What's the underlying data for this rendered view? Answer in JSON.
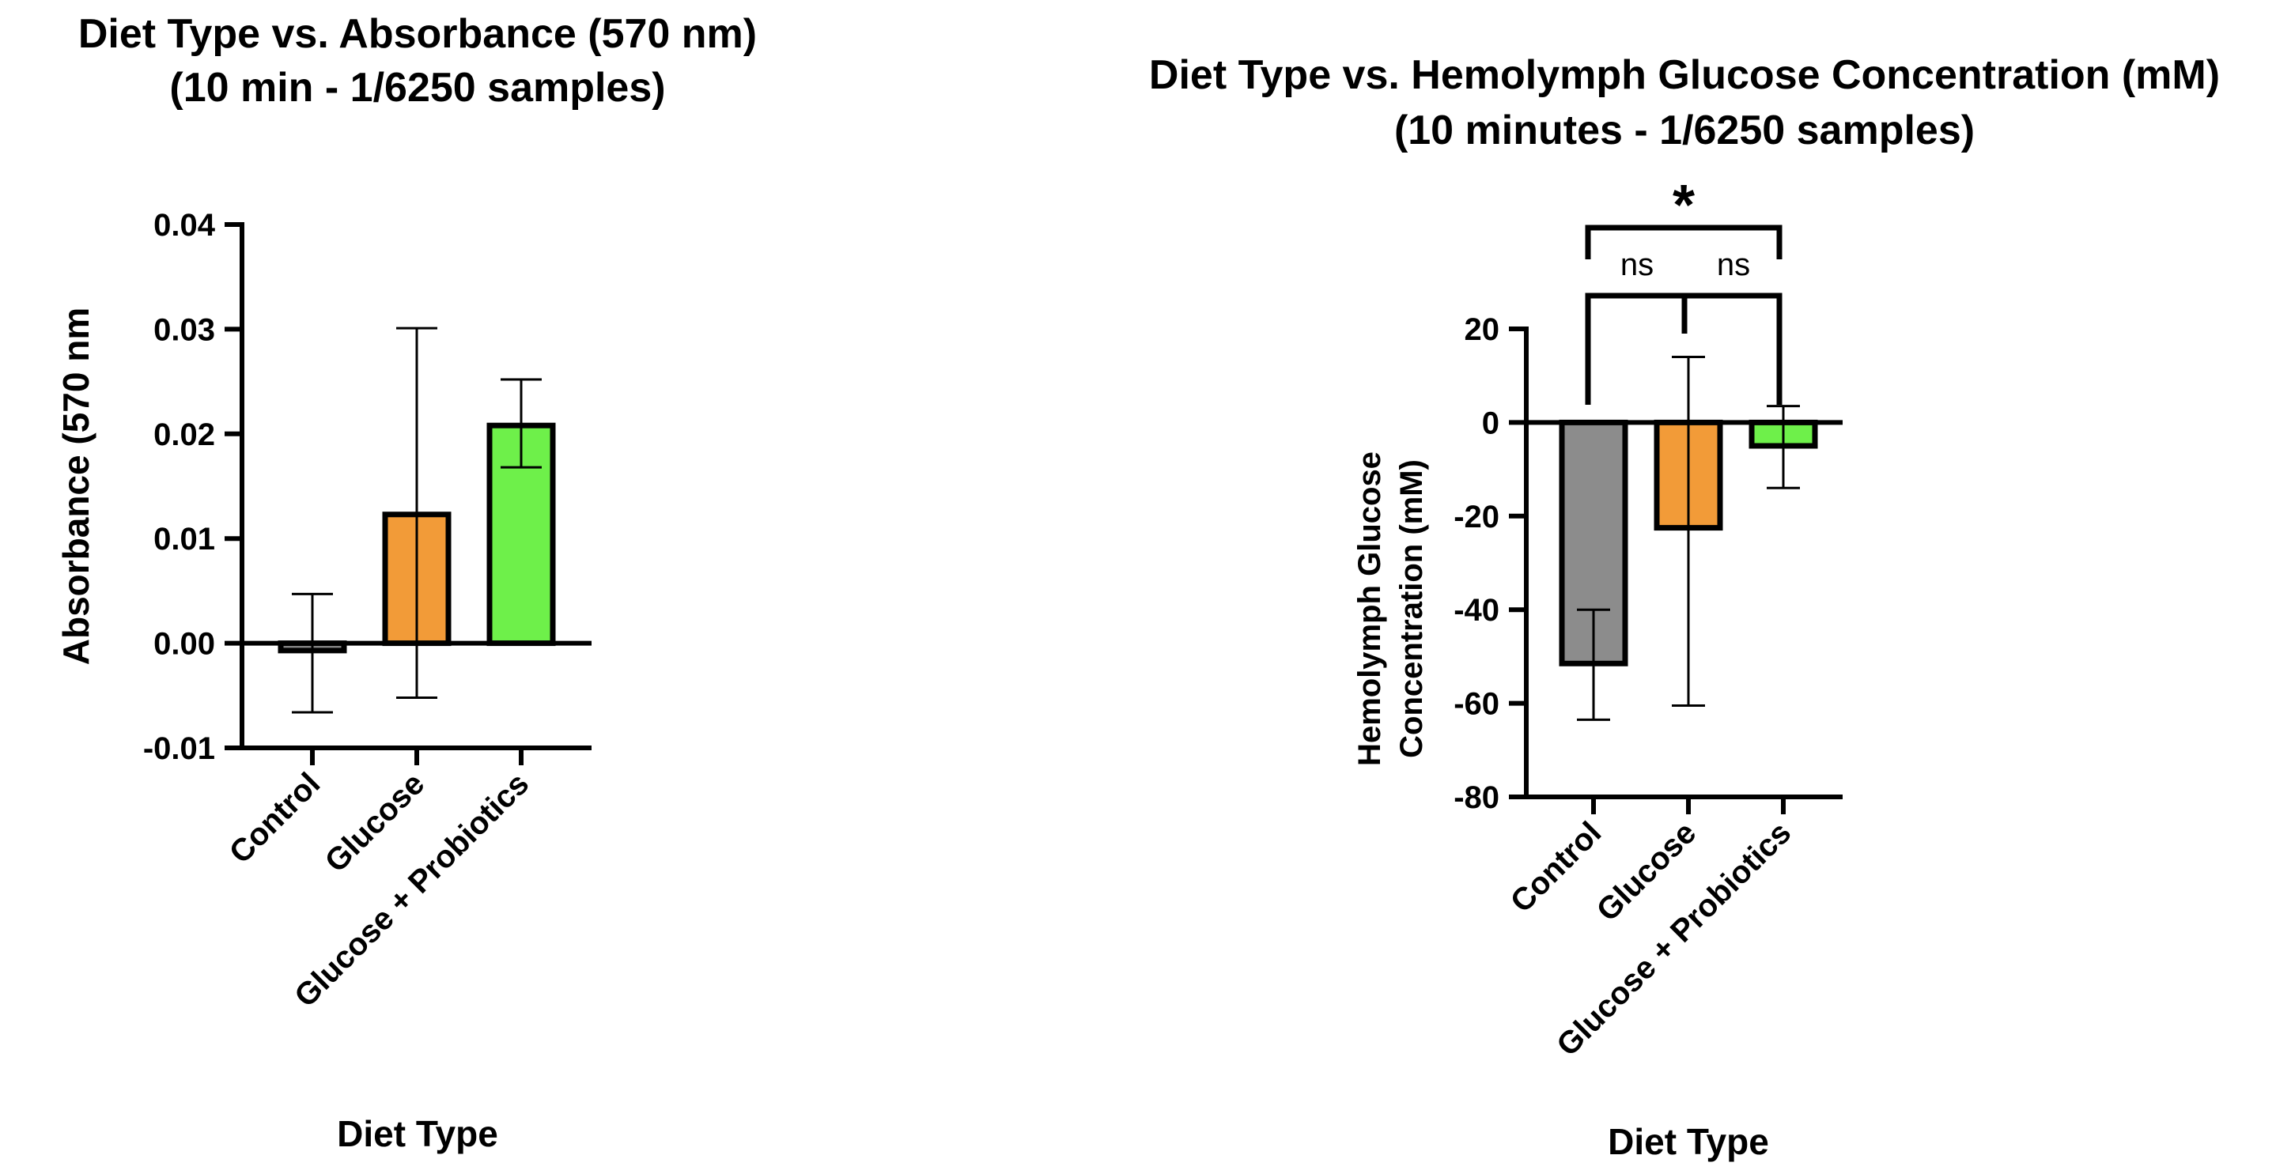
{
  "chart_data": [
    {
      "type": "bar",
      "title": "Diet Type vs. Absorbance (570 nm)",
      "subtitle": "(10 min - 1/6250 samples)",
      "xlabel": "Diet Type",
      "ylabel": "Absorbance (570 nm",
      "ylim": [
        -0.01,
        0.04
      ],
      "yticks": [
        -0.01,
        0.0,
        0.01,
        0.02,
        0.03,
        0.04
      ],
      "ytick_labels": [
        "-0.01",
        "0.00",
        "0.01",
        "0.02",
        "0.03",
        "0.04"
      ],
      "categories": [
        "Control",
        "Glucose",
        "Glucose + Probiotics"
      ],
      "values": [
        -0.0007,
        0.0123,
        0.0208
      ],
      "error_low": [
        -0.0066,
        -0.0052,
        0.0168
      ],
      "error_high": [
        0.0047,
        0.0301,
        0.0252
      ],
      "colors": [
        "#8c8c8c",
        "#f29b38",
        "#6ef04a"
      ]
    },
    {
      "type": "bar",
      "title": "Diet Type vs. Hemolymph Glucose Concentration (mM)",
      "subtitle": "(10 minutes - 1/6250 samples)",
      "xlabel": "Diet Type",
      "ylabel": [
        "Hemolymph Glucose",
        "Concentration (mM)"
      ],
      "ylim": [
        -80,
        20
      ],
      "yticks": [
        -80,
        -60,
        -40,
        -20,
        0,
        20
      ],
      "ytick_labels": [
        "-80",
        "-60",
        "-40",
        "-20",
        "0",
        "20"
      ],
      "categories": [
        "Control",
        "Glucose",
        "Glucose + Probiotics"
      ],
      "values": [
        -51.5,
        -22.5,
        -5
      ],
      "error_low": [
        -63.5,
        -60.5,
        -14
      ],
      "error_high": [
        -40,
        14,
        3.5
      ],
      "colors": [
        "#8c8c8c",
        "#f29b38",
        "#6ef04a"
      ],
      "significance": {
        "outer": "*",
        "inner_left": "ns",
        "inner_right": "ns"
      }
    }
  ]
}
